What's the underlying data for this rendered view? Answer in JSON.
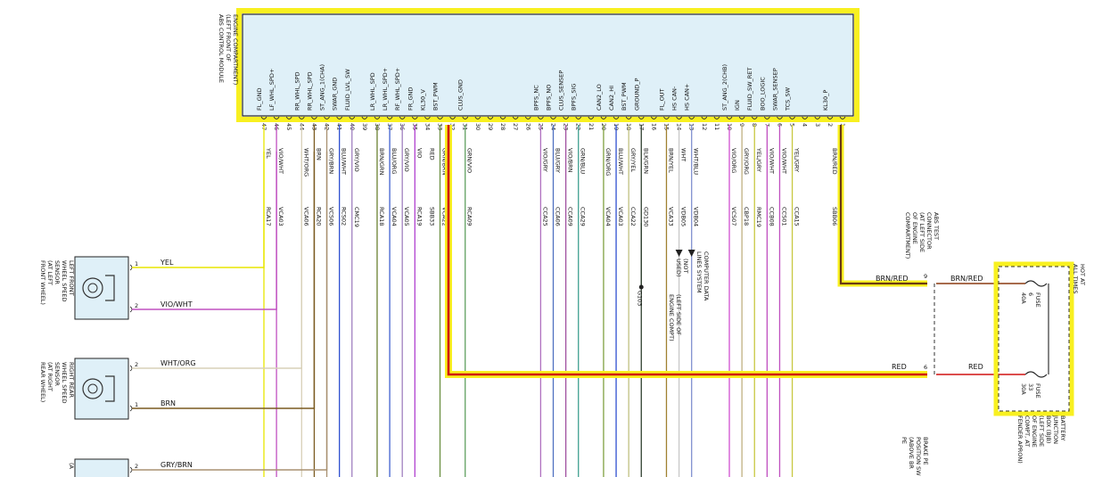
{
  "module": {
    "title_lines": [
      "ABS CONTROL MODULE",
      "(LEFT FRONT OF",
      "ENGINE COMPARTMENT)"
    ],
    "pins": [
      {
        "num": "47",
        "signal": "FL_GND",
        "color_code": "YEL",
        "circuit": "RCA17",
        "wire_color": "#e8e600"
      },
      {
        "num": "46",
        "signal": "LF_WHL_SPD+",
        "color_code": "VIO/WHT",
        "circuit": "VCA03",
        "wire_color": "#c050c0"
      },
      {
        "num": "45",
        "signal": "",
        "color_code": "",
        "circuit": "",
        "wire_color": ""
      },
      {
        "num": "44",
        "signal": "RR_WHL_SPD",
        "color_code": "WHT/ORG",
        "circuit": "VCA06",
        "wire_color": "#d8d0b8"
      },
      {
        "num": "43",
        "signal": "RR_WHL_SPD",
        "color_code": "BRN",
        "circuit": "RCA20",
        "wire_color": "#7a5a20"
      },
      {
        "num": "42",
        "signal": "ST_ANG_1(CHA)",
        "color_code": "GRY/BRN",
        "circuit": "VCS06",
        "wire_color": "#a89070"
      },
      {
        "num": "41",
        "signal": "SWAR_GND",
        "color_code": "BLU/WHT",
        "circuit": "RCS02",
        "wire_color": "#3050d0"
      },
      {
        "num": "40",
        "signal": "FLUID_LVL_SW",
        "color_code": "GRY/VIO",
        "circuit": "CMC19",
        "wire_color": "#a080c0"
      },
      {
        "num": "39",
        "signal": "",
        "color_code": "",
        "circuit": "",
        "wire_color": ""
      },
      {
        "num": "38",
        "signal": "LR_WHL_SPD",
        "color_code": "BRN/GRN",
        "circuit": "RCA18",
        "wire_color": "#6a8030"
      },
      {
        "num": "37",
        "signal": "LR_WHL_SPD+",
        "color_code": "BLU/ORG",
        "circuit": "VCA04",
        "wire_color": "#4060d0"
      },
      {
        "num": "36",
        "signal": "RF_WHL_SPD+",
        "color_code": "GRY/VIO",
        "circuit": "VCA05",
        "wire_color": "#a080c0"
      },
      {
        "num": "35",
        "signal": "FR_GND",
        "color_code": "VIO",
        "circuit": "RCA19",
        "wire_color": "#b040d0"
      },
      {
        "num": "34",
        "signal": "KL30_V",
        "color_code": "RED",
        "circuit": "SBB33",
        "wire_color": "#d01010"
      },
      {
        "num": "33",
        "signal": "BST_PWM",
        "color_code": "GRN/BRN",
        "circuit": "VCA22",
        "wire_color": "#6a9040"
      },
      {
        "num": "32",
        "signal": "",
        "color_code": "",
        "circuit": "",
        "wire_color": ""
      },
      {
        "num": "31",
        "signal": "CLUS_GND",
        "color_code": "GRN/VIO",
        "circuit": "RCA09",
        "wire_color": "#60a060"
      },
      {
        "num": "30",
        "signal": "",
        "color_code": "",
        "circuit": "",
        "wire_color": ""
      },
      {
        "num": "29",
        "signal": "",
        "color_code": "",
        "circuit": "",
        "wire_color": ""
      },
      {
        "num": "28",
        "signal": "",
        "color_code": "",
        "circuit": "",
        "wire_color": ""
      },
      {
        "num": "27",
        "signal": "",
        "color_code": "",
        "circuit": "",
        "wire_color": ""
      },
      {
        "num": "26",
        "signal": "",
        "color_code": "",
        "circuit": "",
        "wire_color": ""
      },
      {
        "num": "25",
        "signal": "BPFS_NC",
        "color_code": "VIO/GRY",
        "circuit": "CCA25",
        "wire_color": "#b070c0"
      },
      {
        "num": "24",
        "signal": "BPFS_NO",
        "color_code": "BLU/GRY",
        "circuit": "CCA06",
        "wire_color": "#5070c0"
      },
      {
        "num": "23",
        "signal": "CLUS_SENSEP",
        "color_code": "VIO/BRN",
        "circuit": "CCA09",
        "wire_color": "#a050a0"
      },
      {
        "num": "22",
        "signal": "BPFS_SIG",
        "color_code": "GRN/BLU",
        "circuit": "CCA29",
        "wire_color": "#40a090"
      },
      {
        "num": "21",
        "signal": "",
        "color_code": "",
        "circuit": "",
        "wire_color": ""
      },
      {
        "num": "20",
        "signal": "CAN2_LO",
        "color_code": "GRN/ORG",
        "circuit": "VCA04",
        "wire_color": "#80a040"
      },
      {
        "num": "19",
        "signal": "CAN2_HI",
        "color_code": "BLU/WHT",
        "circuit": "VCA03",
        "wire_color": "#3050d0"
      },
      {
        "num": "18",
        "signal": "BST_PWM",
        "color_code": "GRY/YEL",
        "circuit": "CCA22",
        "wire_color": "#c0c080"
      },
      {
        "num": "17",
        "signal": "GROUND_P",
        "color_code": "BLK/GRN",
        "circuit": "GD130",
        "wire_color": "#304030"
      },
      {
        "num": "16",
        "signal": "",
        "color_code": "",
        "circuit": "",
        "wire_color": ""
      },
      {
        "num": "15",
        "signal": "FL_OUT",
        "color_code": "BRN/YEL",
        "circuit": "VCA33",
        "wire_color": "#a08030"
      },
      {
        "num": "14",
        "signal": "HS CAN-",
        "color_code": "WHT",
        "circuit": "VDB05",
        "wire_color": "#c8c8c8"
      },
      {
        "num": "13",
        "signal": "HS CAN+",
        "color_code": "WHT/BLU",
        "circuit": "VDB04",
        "wire_color": "#8090d0"
      },
      {
        "num": "12",
        "signal": "",
        "color_code": "",
        "circuit": "",
        "wire_color": ""
      },
      {
        "num": "11",
        "signal": "",
        "color_code": "",
        "circuit": "",
        "wire_color": ""
      },
      {
        "num": "10",
        "signal": "ST_ANG_2(CHB)",
        "color_code": "VIO/ORG",
        "circuit": "VCS07",
        "wire_color": "#d050d0"
      },
      {
        "num": "9",
        "signal": "IGN",
        "color_code": "GRY/ORG",
        "circuit": "CBP18",
        "wire_color": "#c0b080"
      },
      {
        "num": "8",
        "signal": "FLUID_SW_RET",
        "color_code": "YEL/GRY",
        "circuit": "RMC19",
        "wire_color": "#c8c840"
      },
      {
        "num": "7",
        "signal": "BOO_LOGIC",
        "color_code": "VIO/WHT",
        "circuit": "CCB08",
        "wire_color": "#c050c0"
      },
      {
        "num": "6",
        "signal": "SWAR_SENSEP",
        "color_code": "VIO/WHT",
        "circuit": "CCS01",
        "wire_color": "#c050c0"
      },
      {
        "num": "5",
        "signal": "TCS_SW",
        "color_code": "YEL/GRY",
        "circuit": "CCA15",
        "wire_color": "#c8c840"
      },
      {
        "num": "4",
        "signal": "",
        "color_code": "",
        "circuit": "",
        "wire_color": ""
      },
      {
        "num": "3",
        "signal": "",
        "color_code": "",
        "circuit": "",
        "wire_color": ""
      },
      {
        "num": "2",
        "signal": "KL30_P",
        "color_code": "BRN/RED",
        "circuit": "SBB06",
        "wire_color": "#8a3a10"
      },
      {
        "num": "1",
        "signal": "",
        "color_code": "",
        "circuit": "",
        "wire_color": ""
      }
    ]
  },
  "sensors": [
    {
      "name_lines": [
        "LEFT FRONT",
        "WHEEL SPEED",
        "SENSOR",
        "(AT LEFT",
        "FRONT WHEEL)"
      ],
      "pins": [
        {
          "num": "1",
          "label": "YEL",
          "color": "#e8e600"
        },
        {
          "num": "2",
          "label": "VIO/WHT",
          "color": "#c050c0"
        }
      ]
    },
    {
      "name_lines": [
        "RIGHT REAR",
        "WHEEL SPEED",
        "SENSOR",
        "(AT RIGHT",
        "REAR WHEEL)"
      ],
      "pins": [
        {
          "num": "2",
          "label": "WHT/ORG",
          "color": "#d8d0b8"
        },
        {
          "num": "1",
          "label": "BRN",
          "color": "#7a5a20"
        }
      ]
    },
    {
      "name_lines": [
        "(A"
      ],
      "pins": [
        {
          "num": "2",
          "label": "GRY/BRN",
          "color": "#a89070"
        }
      ]
    }
  ],
  "abs_test_connector": {
    "name_lines": [
      "ABS TEST",
      "CONNECTOR",
      "(AT LEFT SIDE",
      "OF ENGINE",
      "COMPARTMENT)"
    ],
    "pin_top": "9",
    "pin_bottom": "6",
    "wire_top_left": "BRN/RED",
    "wire_top_right": "BRN/RED",
    "wire_bottom_left": "RED",
    "wire_bottom_right": "RED"
  },
  "computer_data_lines": [
    "COMPUTER DATA",
    "LINES SYSTEM"
  ],
  "not_used": [
    "(NOT",
    "USED)"
  ],
  "ground_note": [
    "(LEFT SIDE OF",
    "ENGINE COMPT)"
  ],
  "ground_id": "G103",
  "battery_junction_box": {
    "name_lines": [
      "BATTERY",
      "JUNCTION",
      "BOX (BJB)",
      "(LEFT SIDE",
      "OF ENGINE",
      "COMPT, AT",
      "FENDER APRON)"
    ],
    "hot_label": [
      "HOT AT",
      "ALL TIMES"
    ],
    "fuses": [
      {
        "label": "FUSE",
        "num": "6",
        "amps": "40A"
      },
      {
        "label": "FUSE",
        "num": "33",
        "amps": "30A"
      }
    ]
  },
  "brake_switch": [
    "BRAKE PE",
    "POSITION SW",
    "(ABOVE BR",
    "PE"
  ],
  "colors": {
    "module_fill": "#dff0f8",
    "highlight": "#f8f020",
    "power_wire": "#d01010",
    "ground_wire": "#6a3a10"
  }
}
